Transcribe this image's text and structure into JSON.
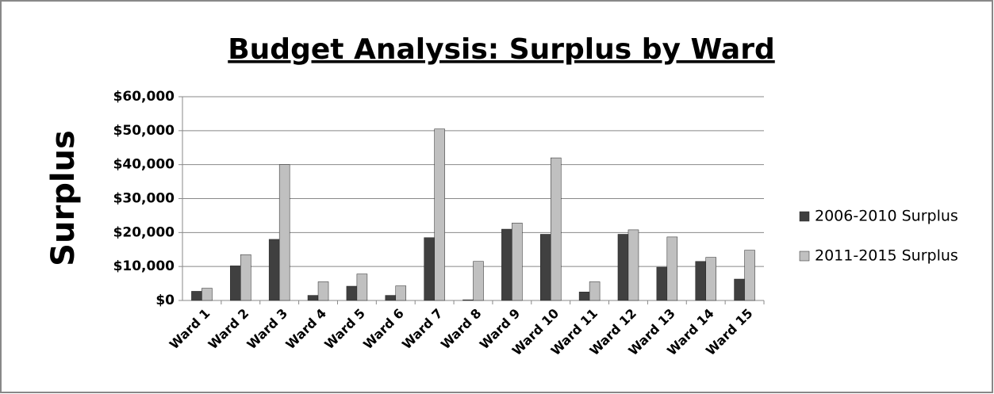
{
  "chart_data": {
    "type": "bar",
    "title": "Budget Analysis: Surplus by Ward",
    "y_label": "Surplus",
    "categories": [
      "Ward 1",
      "Ward 2",
      "Ward 3",
      "Ward 4",
      "Ward 5",
      "Ward 6",
      "Ward 7",
      "Ward 8",
      "Ward 9",
      "Ward 10",
      "Ward 11",
      "Ward 12",
      "Ward 13",
      "Ward 14",
      "Ward 15"
    ],
    "series": [
      {
        "name": "2006-2010 Surplus",
        "color": "#404040",
        "values": [
          2700,
          10200,
          18000,
          1500,
          4200,
          1500,
          18500,
          200,
          21000,
          19500,
          2500,
          19500,
          9800,
          11500,
          6300
        ]
      },
      {
        "name": "2011-2015 Surplus",
        "color": "#c0c0c0",
        "values": [
          3600,
          13500,
          40000,
          5500,
          7800,
          4300,
          50500,
          11500,
          22800,
          42000,
          5500,
          20800,
          18700,
          12700,
          14800
        ]
      }
    ],
    "ylim": [
      0,
      60000
    ],
    "yticks": [
      {
        "value": 0,
        "label": "$0"
      },
      {
        "value": 10000,
        "label": "$10,000"
      },
      {
        "value": 20000,
        "label": "$20,000"
      },
      {
        "value": 30000,
        "label": "$30,000"
      },
      {
        "value": 40000,
        "label": "$40,000"
      },
      {
        "value": 50000,
        "label": "$50,000"
      },
      {
        "value": 60000,
        "label": "$60,000"
      }
    ],
    "grid": true,
    "legend": "right"
  }
}
